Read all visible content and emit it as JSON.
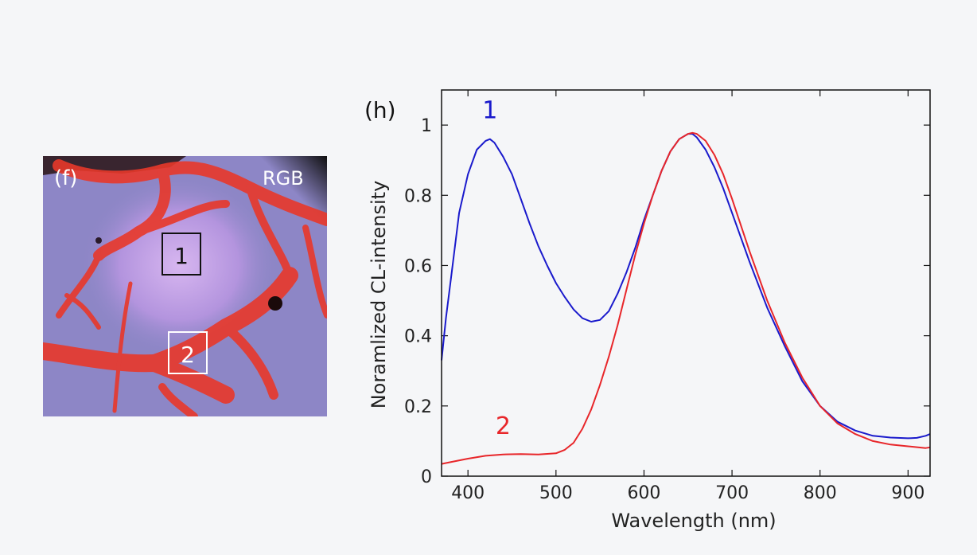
{
  "panels": {
    "f": {
      "label": "(f)",
      "channel_label": "RGB",
      "regions": [
        {
          "label": "1",
          "box_color": "#111111",
          "text_color": "#111111"
        },
        {
          "label": "2",
          "box_color": "#ffffff",
          "text_color": "#ffffff"
        }
      ],
      "colors": {
        "background": "#8d86c6",
        "grain_light": "#c9a8e6",
        "boundary": "#e8382a"
      }
    }
  },
  "chart_data": {
    "type": "line",
    "panel_label": "(h)",
    "title": "",
    "xlabel": "Wavelength (nm)",
    "ylabel": "Noramlized CL-intensity",
    "xlim": [
      370,
      925
    ],
    "ylim": [
      0,
      1.1
    ],
    "xticks": [
      400,
      500,
      600,
      700,
      800,
      900
    ],
    "yticks": [
      0,
      0.2,
      0.4,
      0.6,
      0.8,
      1
    ],
    "grid": false,
    "series": [
      {
        "name": "1",
        "color": "#1a1acc",
        "x": [
          370,
          375,
          380,
          385,
          390,
          400,
          410,
          420,
          425,
          430,
          440,
          450,
          460,
          470,
          480,
          490,
          500,
          510,
          520,
          530,
          540,
          550,
          560,
          570,
          580,
          590,
          600,
          610,
          620,
          630,
          640,
          650,
          655,
          660,
          670,
          680,
          690,
          700,
          720,
          740,
          760,
          780,
          800,
          820,
          840,
          860,
          880,
          900,
          910,
          920,
          925
        ],
        "y": [
          0.33,
          0.45,
          0.55,
          0.65,
          0.75,
          0.86,
          0.93,
          0.955,
          0.96,
          0.95,
          0.91,
          0.86,
          0.79,
          0.72,
          0.655,
          0.6,
          0.55,
          0.51,
          0.475,
          0.45,
          0.44,
          0.445,
          0.47,
          0.52,
          0.58,
          0.65,
          0.73,
          0.8,
          0.87,
          0.925,
          0.96,
          0.975,
          0.975,
          0.965,
          0.93,
          0.88,
          0.82,
          0.75,
          0.61,
          0.48,
          0.37,
          0.27,
          0.2,
          0.155,
          0.13,
          0.115,
          0.11,
          0.108,
          0.109,
          0.115,
          0.12
        ]
      },
      {
        "name": "2",
        "color": "#e8262a",
        "x": [
          370,
          380,
          400,
          420,
          440,
          460,
          480,
          500,
          510,
          520,
          530,
          540,
          550,
          560,
          570,
          580,
          590,
          600,
          610,
          620,
          630,
          640,
          650,
          655,
          660,
          670,
          680,
          690,
          700,
          720,
          740,
          760,
          780,
          800,
          820,
          840,
          860,
          880,
          900,
          920,
          925
        ],
        "y": [
          0.035,
          0.04,
          0.05,
          0.058,
          0.062,
          0.063,
          0.062,
          0.065,
          0.075,
          0.095,
          0.135,
          0.19,
          0.26,
          0.34,
          0.43,
          0.53,
          0.63,
          0.72,
          0.8,
          0.87,
          0.925,
          0.96,
          0.975,
          0.978,
          0.975,
          0.955,
          0.915,
          0.86,
          0.79,
          0.64,
          0.5,
          0.38,
          0.28,
          0.2,
          0.15,
          0.12,
          0.1,
          0.09,
          0.085,
          0.08,
          0.082
        ]
      }
    ],
    "annotations": [
      {
        "text": "1",
        "x": 425,
        "y": 1.02,
        "color": "#1a1acc"
      },
      {
        "text": "2",
        "x": 440,
        "y": 0.12,
        "color": "#e8262a"
      }
    ]
  }
}
